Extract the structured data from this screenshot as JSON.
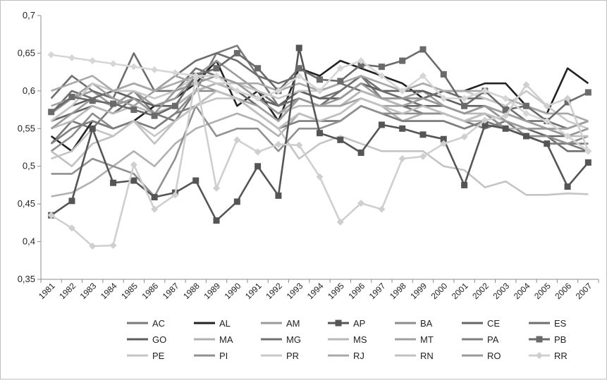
{
  "chart_data": {
    "type": "line",
    "title": "",
    "xlabel": "",
    "ylabel": "",
    "x": [
      "1981",
      "1982",
      "1983",
      "1984",
      "1985",
      "1986",
      "1987",
      "1988",
      "1989",
      "1990",
      "1991",
      "1992",
      "1993",
      "1994",
      "1995",
      "1996",
      "1997",
      "1998",
      "1999",
      "2000",
      "2001",
      "2002",
      "2003",
      "2004",
      "2005",
      "2006",
      "2007"
    ],
    "ylim": [
      0.35,
      0.7
    ],
    "yticks": [
      {
        "v": 0.35,
        "label": "0,35"
      },
      {
        "v": 0.4,
        "label": "0,4"
      },
      {
        "v": 0.45,
        "label": "0,45"
      },
      {
        "v": 0.5,
        "label": "0,5"
      },
      {
        "v": 0.55,
        "label": "0,55"
      },
      {
        "v": 0.6,
        "label": "0,6"
      },
      {
        "v": 0.65,
        "label": "0,65"
      },
      {
        "v": 0.7,
        "label": "0,7"
      }
    ],
    "grid": false,
    "legend": "bottom",
    "series": [
      {
        "name": "AC",
        "color": "#7a7a7a",
        "marker": "none",
        "values": [
          0.53,
          0.56,
          0.55,
          0.58,
          0.6,
          0.57,
          0.56,
          0.6,
          0.65,
          0.66,
          0.62,
          0.58,
          0.6,
          0.59,
          0.6,
          0.62,
          0.59,
          0.58,
          0.57,
          0.57,
          0.56,
          0.55,
          0.56,
          0.54,
          0.53,
          0.53,
          0.52
        ]
      },
      {
        "name": "AL",
        "color": "#222222",
        "marker": "none",
        "values": [
          0.54,
          0.52,
          0.56,
          0.55,
          0.56,
          0.58,
          0.59,
          0.61,
          0.64,
          0.58,
          0.6,
          0.56,
          0.63,
          0.62,
          0.64,
          0.63,
          0.62,
          0.61,
          0.59,
          0.6,
          0.6,
          0.61,
          0.61,
          0.58,
          0.57,
          0.63,
          0.61
        ]
      },
      {
        "name": "AM",
        "color": "#9a9a9a",
        "marker": "none",
        "values": [
          0.57,
          0.59,
          0.6,
          0.58,
          0.6,
          0.58,
          0.59,
          0.62,
          0.64,
          0.62,
          0.6,
          0.58,
          0.6,
          0.59,
          0.59,
          0.61,
          0.6,
          0.59,
          0.6,
          0.58,
          0.57,
          0.58,
          0.56,
          0.55,
          0.55,
          0.54,
          0.55
        ]
      },
      {
        "name": "AP",
        "color": "#555555",
        "marker": "square",
        "values": [
          0.435,
          0.454,
          0.55,
          0.478,
          0.481,
          0.459,
          0.465,
          0.481,
          0.428,
          0.453,
          0.5,
          0.461,
          0.657,
          0.544,
          0.535,
          0.518,
          0.555,
          0.55,
          0.542,
          0.536,
          0.475,
          0.555,
          0.55,
          0.54,
          0.53,
          0.473,
          0.505
        ]
      },
      {
        "name": "BA",
        "color": "#8c8c8c",
        "marker": "none",
        "values": [
          0.52,
          0.54,
          0.57,
          0.55,
          0.56,
          0.55,
          0.57,
          0.6,
          0.6,
          0.59,
          0.57,
          0.55,
          0.57,
          0.56,
          0.56,
          0.58,
          0.57,
          0.56,
          0.56,
          0.56,
          0.55,
          0.56,
          0.55,
          0.54,
          0.54,
          0.53,
          0.53
        ]
      },
      {
        "name": "CE",
        "color": "#666666",
        "marker": "none",
        "values": [
          0.56,
          0.57,
          0.58,
          0.57,
          0.59,
          0.57,
          0.58,
          0.6,
          0.61,
          0.6,
          0.58,
          0.56,
          0.59,
          0.58,
          0.58,
          0.6,
          0.59,
          0.58,
          0.58,
          0.58,
          0.57,
          0.58,
          0.56,
          0.55,
          0.54,
          0.54,
          0.52
        ]
      },
      {
        "name": "ES",
        "color": "#6e6e6e",
        "marker": "none",
        "values": [
          0.59,
          0.62,
          0.6,
          0.59,
          0.65,
          0.6,
          0.62,
          0.64,
          0.65,
          0.64,
          0.62,
          0.61,
          0.62,
          0.6,
          0.61,
          0.6,
          0.59,
          0.59,
          0.58,
          0.57,
          0.56,
          0.57,
          0.55,
          0.54,
          0.54,
          0.52,
          0.52
        ]
      },
      {
        "name": "GO",
        "color": "#5e5e5e",
        "marker": "none",
        "values": [
          0.56,
          0.58,
          0.59,
          0.6,
          0.59,
          0.58,
          0.58,
          0.6,
          0.61,
          0.6,
          0.59,
          0.58,
          0.6,
          0.59,
          0.59,
          0.61,
          0.6,
          0.6,
          0.6,
          0.59,
          0.58,
          0.58,
          0.57,
          0.56,
          0.55,
          0.55,
          0.56
        ]
      },
      {
        "name": "MA",
        "color": "#b0b0b0",
        "marker": "none",
        "values": [
          0.46,
          0.465,
          0.48,
          0.5,
          0.52,
          0.5,
          0.53,
          0.55,
          0.56,
          0.57,
          0.56,
          0.54,
          0.57,
          0.56,
          0.57,
          0.59,
          0.58,
          0.56,
          0.57,
          0.57,
          0.56,
          0.56,
          0.55,
          0.55,
          0.55,
          0.54,
          0.55
        ]
      },
      {
        "name": "MG",
        "color": "#707070",
        "marker": "none",
        "values": [
          0.57,
          0.6,
          0.59,
          0.6,
          0.61,
          0.6,
          0.6,
          0.63,
          0.62,
          0.61,
          0.6,
          0.58,
          0.59,
          0.58,
          0.6,
          0.62,
          0.6,
          0.59,
          0.59,
          0.6,
          0.59,
          0.59,
          0.58,
          0.56,
          0.56,
          0.55,
          0.56
        ]
      },
      {
        "name": "MS",
        "color": "#b8b8b8",
        "marker": "none",
        "values": [
          0.55,
          0.56,
          0.58,
          0.57,
          0.58,
          0.57,
          0.58,
          0.6,
          0.61,
          0.6,
          0.59,
          0.57,
          0.58,
          0.58,
          0.58,
          0.6,
          0.59,
          0.58,
          0.59,
          0.58,
          0.57,
          0.57,
          0.56,
          0.55,
          0.55,
          0.54,
          0.54
        ]
      },
      {
        "name": "MT",
        "color": "#a0a0a0",
        "marker": "none",
        "values": [
          0.58,
          0.59,
          0.61,
          0.59,
          0.58,
          0.6,
          0.62,
          0.61,
          0.6,
          0.59,
          0.58,
          0.56,
          0.59,
          0.58,
          0.58,
          0.59,
          0.58,
          0.58,
          0.59,
          0.58,
          0.57,
          0.58,
          0.57,
          0.56,
          0.55,
          0.55,
          0.56
        ]
      },
      {
        "name": "PA",
        "color": "#7e7e7e",
        "marker": "none",
        "values": [
          0.53,
          0.55,
          0.56,
          0.55,
          0.56,
          0.55,
          0.57,
          0.58,
          0.6,
          0.59,
          0.57,
          0.55,
          0.56,
          0.56,
          0.56,
          0.58,
          0.57,
          0.56,
          0.56,
          0.56,
          0.55,
          0.56,
          0.55,
          0.54,
          0.53,
          0.53,
          0.53
        ]
      },
      {
        "name": "PB",
        "color": "#6a6a6a",
        "marker": "square",
        "values": [
          0.572,
          0.592,
          0.587,
          0.583,
          0.575,
          0.567,
          0.58,
          0.62,
          0.63,
          0.65,
          0.63,
          0.6,
          0.63,
          0.615,
          0.613,
          0.635,
          0.632,
          0.64,
          0.655,
          0.622,
          0.58,
          0.6,
          0.575,
          0.58,
          0.56,
          0.585,
          0.598
        ]
      },
      {
        "name": "PE",
        "color": "#c4c4c4",
        "marker": "none",
        "values": [
          0.51,
          0.52,
          0.55,
          0.54,
          0.56,
          0.54,
          0.56,
          0.58,
          0.59,
          0.59,
          0.57,
          0.55,
          0.51,
          0.53,
          0.54,
          0.53,
          0.52,
          0.52,
          0.52,
          0.5,
          0.495,
          0.472,
          0.48,
          0.462,
          0.462,
          0.464,
          0.463
        ]
      },
      {
        "name": "PI",
        "color": "#909090",
        "marker": "none",
        "values": [
          0.49,
          0.49,
          0.51,
          0.5,
          0.49,
          0.46,
          0.51,
          0.58,
          0.54,
          0.55,
          0.55,
          0.52,
          0.55,
          0.55,
          0.56,
          0.58,
          0.57,
          0.57,
          0.57,
          0.57,
          0.56,
          0.57,
          0.55,
          0.54,
          0.54,
          0.53,
          0.54
        ]
      },
      {
        "name": "PR",
        "color": "#c8c8c8",
        "marker": "none",
        "values": [
          0.56,
          0.58,
          0.61,
          0.6,
          0.6,
          0.59,
          0.6,
          0.62,
          0.61,
          0.61,
          0.6,
          0.59,
          0.6,
          0.6,
          0.61,
          0.62,
          0.61,
          0.6,
          0.61,
          0.6,
          0.6,
          0.59,
          0.58,
          0.6,
          0.58,
          0.56,
          0.55
        ]
      },
      {
        "name": "RJ",
        "color": "#a8a8a8",
        "marker": "none",
        "values": [
          0.6,
          0.61,
          0.62,
          0.6,
          0.61,
          0.6,
          0.61,
          0.62,
          0.62,
          0.61,
          0.61,
          0.6,
          0.61,
          0.6,
          0.61,
          0.62,
          0.61,
          0.6,
          0.61,
          0.6,
          0.6,
          0.6,
          0.59,
          0.58,
          0.57,
          0.57,
          0.56
        ]
      },
      {
        "name": "RN",
        "color": "#c0c0c0",
        "marker": "none",
        "values": [
          0.52,
          0.5,
          0.53,
          0.54,
          0.56,
          0.53,
          0.56,
          0.58,
          0.6,
          0.59,
          0.57,
          0.55,
          0.57,
          0.56,
          0.57,
          0.59,
          0.58,
          0.57,
          0.58,
          0.57,
          0.56,
          0.57,
          0.56,
          0.55,
          0.55,
          0.54,
          0.54
        ]
      },
      {
        "name": "RO",
        "color": "#999999",
        "marker": "none",
        "values": [
          0.55,
          0.57,
          0.59,
          0.58,
          0.59,
          0.57,
          0.6,
          0.61,
          0.62,
          0.61,
          0.59,
          0.57,
          0.59,
          0.58,
          0.59,
          0.61,
          0.59,
          0.59,
          0.59,
          0.58,
          0.57,
          0.58,
          0.56,
          0.55,
          0.55,
          0.54,
          0.55
        ]
      },
      {
        "name": "RR",
        "color": "#cfcfcf",
        "marker": "diamond",
        "values": [
          0.435,
          0.418,
          0.394,
          0.395,
          0.502,
          0.443,
          0.462,
          0.617,
          0.471,
          0.535,
          0.519,
          0.529,
          0.528,
          0.486,
          0.426,
          0.451,
          0.443,
          0.51,
          0.513,
          0.53,
          0.539,
          0.561,
          0.567,
          0.608,
          0.58,
          0.59,
          0.52
        ]
      },
      {
        "name": "",
        "color": "#d6d6d6",
        "marker": "diamond",
        "values": [
          0.648,
          0.644,
          0.64,
          0.636,
          0.632,
          0.628,
          0.624,
          0.62,
          0.62,
          0.6,
          0.59,
          0.6,
          0.62,
          0.6,
          0.63,
          0.64,
          0.62,
          0.6,
          0.62,
          0.59,
          0.59,
          0.6,
          0.59,
          0.57,
          0.56,
          0.54,
          0.52
        ]
      }
    ]
  }
}
